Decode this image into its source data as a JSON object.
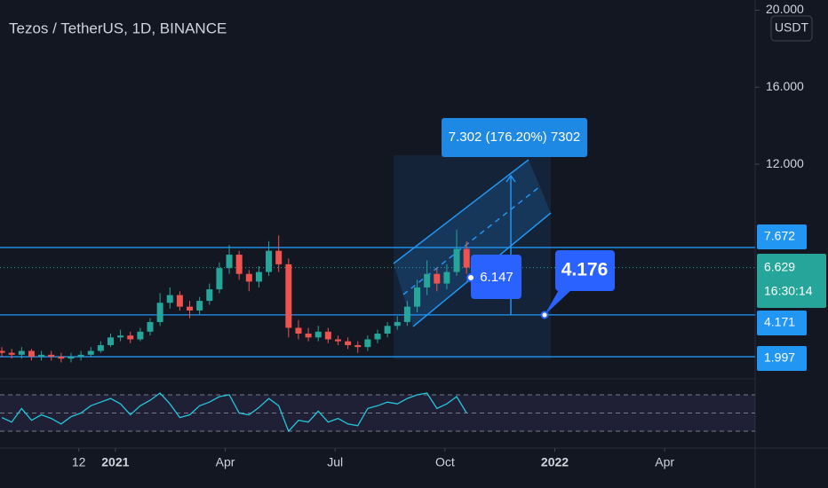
{
  "chart_data": {
    "type": "candlestick",
    "title": "Tezos / TetherUS, 1D, BINANCE",
    "currency": "USDT",
    "x": [
      -3.1,
      -2.83,
      -2.56,
      -2.29,
      -2.02,
      -1.75,
      -1.48,
      -1.21,
      -0.94,
      -0.67,
      -0.4,
      -0.13,
      0.14,
      0.41,
      0.68,
      0.95,
      1.22,
      1.49,
      1.76,
      2.03,
      2.3,
      2.57,
      2.84,
      3.11,
      3.38,
      3.65,
      3.92,
      4.19,
      4.46,
      4.73,
      5.0,
      5.27,
      5.54,
      5.81,
      6.08,
      6.35,
      6.62,
      6.89,
      7.16,
      7.43,
      7.7,
      7.97,
      8.24,
      8.51,
      8.78,
      9.05,
      9.32,
      9.59
    ],
    "open": [
      2.3,
      2.2,
      2.1,
      2.3,
      2.0,
      2.1,
      2.0,
      1.9,
      2.0,
      2.1,
      2.3,
      2.6,
      3.0,
      3.1,
      2.9,
      3.3,
      3.8,
      4.8,
      5.2,
      4.6,
      4.4,
      4.9,
      5.5,
      6.6,
      7.3,
      6.3,
      5.9,
      6.4,
      7.5,
      6.8,
      3.5,
      3.2,
      3.0,
      3.3,
      2.9,
      2.8,
      2.6,
      2.5,
      2.9,
      3.2,
      3.6,
      3.8,
      4.6,
      5.6,
      6.3,
      5.8,
      6.4,
      7.6
    ],
    "high": [
      2.5,
      2.4,
      2.5,
      2.4,
      2.3,
      2.3,
      2.2,
      2.2,
      2.3,
      2.5,
      2.8,
      3.2,
      3.4,
      3.3,
      3.5,
      4.0,
      5.3,
      5.6,
      5.4,
      4.9,
      5.1,
      5.8,
      6.9,
      7.8,
      7.5,
      6.5,
      6.7,
      8.0,
      8.3,
      7.1,
      3.9,
      3.5,
      3.6,
      3.5,
      3.1,
      3.0,
      2.8,
      3.1,
      3.4,
      3.8,
      4.1,
      4.9,
      6.0,
      7.0,
      6.6,
      6.8,
      8.6,
      8.0
    ],
    "low": [
      2.0,
      1.9,
      1.9,
      1.8,
      1.8,
      1.8,
      1.7,
      1.7,
      1.8,
      2.0,
      2.2,
      2.5,
      2.8,
      2.7,
      2.8,
      3.1,
      3.6,
      4.5,
      4.4,
      4.0,
      4.2,
      4.7,
      5.3,
      6.3,
      6.0,
      5.4,
      5.6,
      6.2,
      6.4,
      3.0,
      2.9,
      2.8,
      2.8,
      2.7,
      2.6,
      2.4,
      2.2,
      2.3,
      2.7,
      3.0,
      3.4,
      3.6,
      4.3,
      5.2,
      5.4,
      5.5,
      6.2,
      6.3
    ],
    "close": [
      2.2,
      2.1,
      2.3,
      2.0,
      2.1,
      2.0,
      1.9,
      2.0,
      2.1,
      2.3,
      2.6,
      3.0,
      3.1,
      2.9,
      3.3,
      3.8,
      4.8,
      5.2,
      4.6,
      4.4,
      4.9,
      5.5,
      6.6,
      7.3,
      6.3,
      5.9,
      6.4,
      7.5,
      6.8,
      3.5,
      3.2,
      3.0,
      3.3,
      2.9,
      2.8,
      2.6,
      2.5,
      2.9,
      3.2,
      3.6,
      3.8,
      4.6,
      5.6,
      6.3,
      5.8,
      6.4,
      7.6,
      6.629
    ],
    "colors": {
      "up": "#26a69a",
      "down": "#ef5350"
    },
    "xlim": [
      -3.15,
      17.47
    ],
    "xticks": [
      {
        "value": -1,
        "label": "12"
      },
      {
        "value": 0,
        "label": "2021"
      },
      {
        "value": 3,
        "label": "Apr"
      },
      {
        "value": 6,
        "label": "Jul"
      },
      {
        "value": 9,
        "label": "Oct"
      },
      {
        "value": 12,
        "label": "2022"
      },
      {
        "value": 15,
        "label": "Apr"
      }
    ],
    "ylim": [
      0.94,
      20.53
    ],
    "yticks": [
      {
        "value": 12,
        "label": "12.000"
      },
      {
        "value": 16,
        "label": "16.000"
      },
      {
        "value": 20,
        "label": "20.000"
      }
    ],
    "price_lines": [
      7.672,
      6.629,
      4.171,
      1.997
    ],
    "countdown": "16:30:14",
    "annotations": [
      "7.302 (176.20%) 7302",
      "6.147",
      "4.176"
    ],
    "rsi": {
      "values": [
        45,
        40,
        55,
        42,
        48,
        44,
        38,
        46,
        50,
        58,
        62,
        66,
        60,
        48,
        58,
        64,
        72,
        60,
        45,
        48,
        58,
        62,
        68,
        70,
        50,
        48,
        56,
        66,
        58,
        30,
        42,
        40,
        52,
        40,
        44,
        38,
        36,
        55,
        58,
        62,
        60,
        66,
        70,
        72,
        55,
        60,
        68,
        50
      ],
      "color": "#26c6da",
      "ylim": [
        16.3,
        86.6
      ],
      "levels": [
        30,
        50,
        70
      ]
    }
  }
}
